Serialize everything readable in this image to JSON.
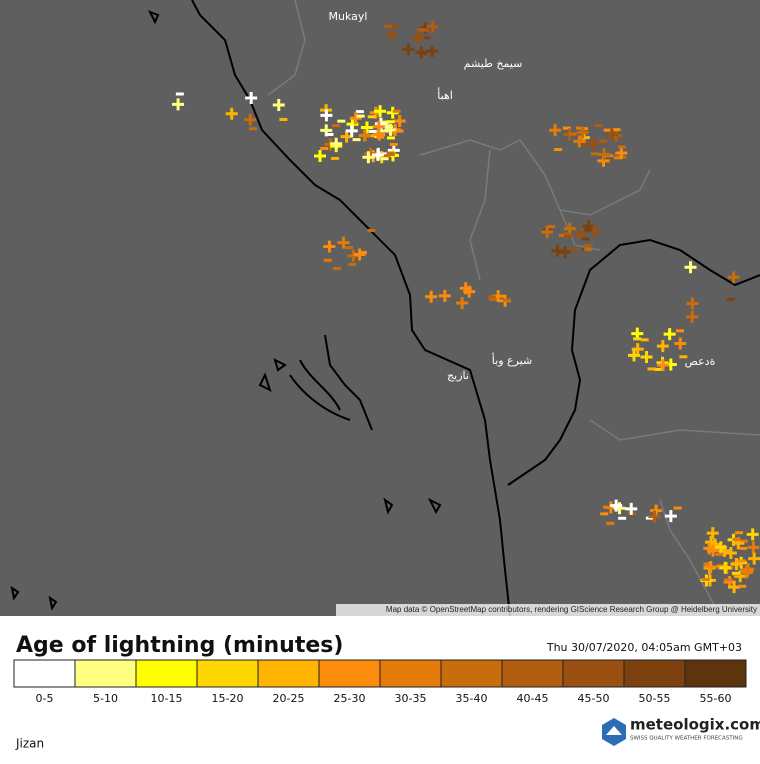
{
  "map": {
    "place_labels": [
      "Mukayl",
      "سيمخ طيشم",
      "اهبأ",
      "شيرع وبأ",
      "نازيج",
      "ةدعص"
    ],
    "attribution": "Map data © OpenStreetMap contributors, rendering GIScience Research Group @ Heidelberg University"
  },
  "legend": {
    "title": "Age of lightning (minutes)",
    "timestamp": "Thu 30/07/2020, 04:05am GMT+03",
    "bins": [
      {
        "label": "0-5",
        "color": "#ffffff"
      },
      {
        "label": "5-10",
        "color": "#ffff80"
      },
      {
        "label": "10-15",
        "color": "#ffff00"
      },
      {
        "label": "15-20",
        "color": "#ffd700"
      },
      {
        "label": "20-25",
        "color": "#ffb400"
      },
      {
        "label": "25-30",
        "color": "#fb8c0c"
      },
      {
        "label": "30-35",
        "color": "#e47b0a"
      },
      {
        "label": "35-40",
        "color": "#c96c0c"
      },
      {
        "label": "40-45",
        "color": "#b25e10"
      },
      {
        "label": "45-50",
        "color": "#9a5010"
      },
      {
        "label": "50-55",
        "color": "#7c410f"
      },
      {
        "label": "55-60",
        "color": "#5e340f"
      }
    ]
  },
  "footer": {
    "location": "Jizan",
    "brand": "meteologix.com",
    "tagline": "SWISS QUALITY WEATHER FORECASTING"
  }
}
